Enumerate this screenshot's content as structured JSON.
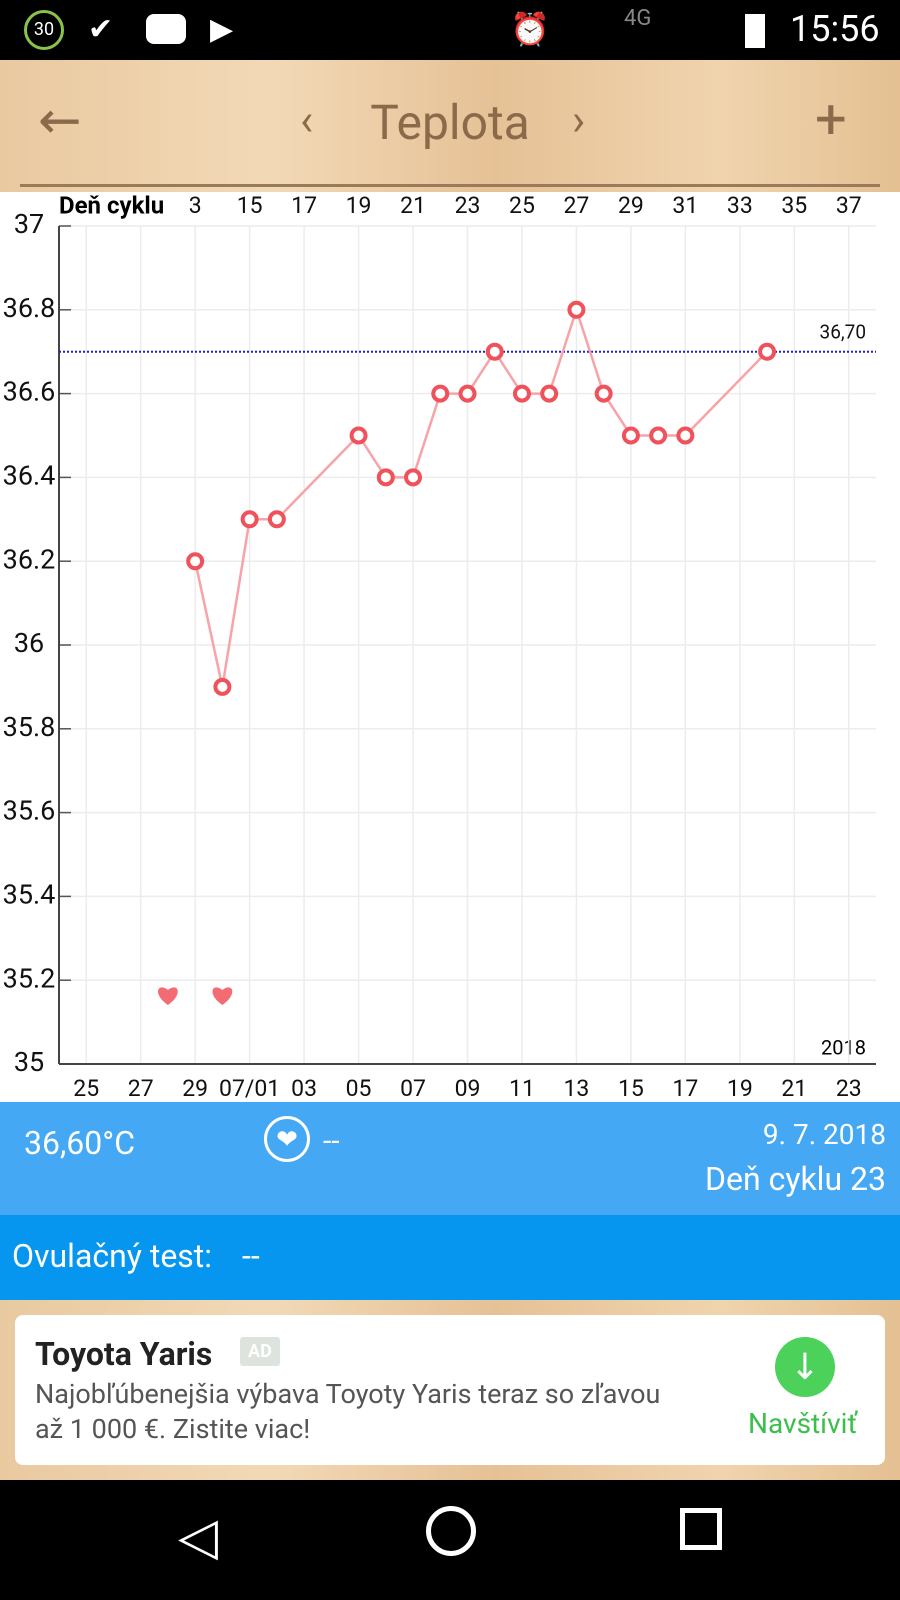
{
  "status_bar": {
    "badge": "30",
    "network": "4G",
    "time": "15:56"
  },
  "header": {
    "title": "Teplota"
  },
  "chart_data": {
    "type": "line",
    "x_top_axis_label": "Deň cyklu",
    "x": [
      13,
      14,
      15,
      16,
      19,
      20,
      21,
      22,
      23,
      24,
      25,
      26,
      27,
      28,
      29,
      30,
      31,
      34
    ],
    "values": [
      36.2,
      35.9,
      36.3,
      36.3,
      36.5,
      36.4,
      36.4,
      36.6,
      36.6,
      36.7,
      36.6,
      36.6,
      36.8,
      36.6,
      36.5,
      36.5,
      36.5,
      36.7
    ],
    "color": "#f0525b",
    "line_color": "#f7a3a7",
    "xlim": [
      8,
      38
    ],
    "ylim": [
      35,
      37
    ],
    "yticks": [
      35,
      35.2,
      35.4,
      35.6,
      35.8,
      36,
      36.2,
      36.4,
      36.6,
      36.8,
      37
    ],
    "xticks": [
      {
        "value": 9,
        "label": "25"
      },
      {
        "value": 11,
        "label": "27"
      },
      {
        "value": 13,
        "label": "29"
      },
      {
        "value": 15,
        "label": "07/01"
      },
      {
        "value": 17,
        "label": "03"
      },
      {
        "value": 19,
        "label": "05"
      },
      {
        "value": 21,
        "label": "07"
      },
      {
        "value": 23,
        "label": "09"
      },
      {
        "value": 25,
        "label": "11"
      },
      {
        "value": 27,
        "label": "13"
      },
      {
        "value": 29,
        "label": "15"
      },
      {
        "value": 31,
        "label": "17"
      },
      {
        "value": 33,
        "label": "19"
      },
      {
        "value": 35,
        "label": "21"
      },
      {
        "value": 37,
        "label": "23"
      }
    ],
    "x2ticks": [
      {
        "value": 13,
        "label": "3"
      },
      15,
      17,
      19,
      21,
      23,
      25,
      27,
      29,
      31,
      33,
      35,
      37
    ],
    "reference_line": {
      "value": 36.7,
      "label": "36,70",
      "color": "#1d1dd8"
    },
    "year_label": "2018",
    "hearts": [
      12,
      14
    ],
    "grid": true
  },
  "info": {
    "temperature": "36,60°C",
    "intercourse": "--",
    "date": "9. 7. 2018",
    "cycle_day": "Deň cyklu 23"
  },
  "ovulation": {
    "label": "Ovulačný test:",
    "value": "--"
  },
  "ad": {
    "title": "Toyota Yaris",
    "badge": "AD",
    "text": "Najobľúbenejšia výbava Toyoty Yaris teraz so zľavou až 1 000 €. Zistite viac!",
    "button": "Navštíviť"
  }
}
